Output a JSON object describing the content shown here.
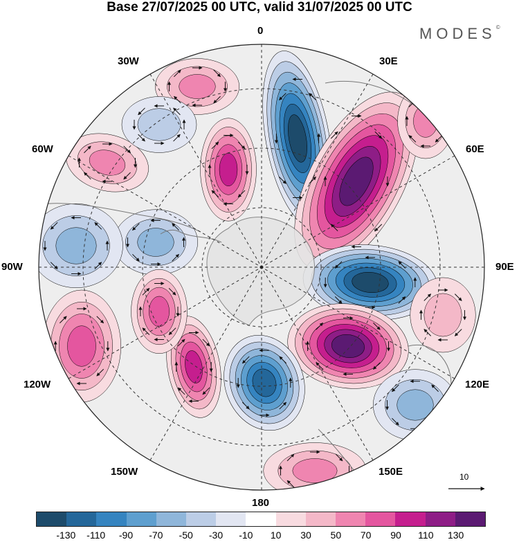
{
  "title": "Base 27/07/2025 00 UTC, valid 31/07/2025 00 UTC",
  "brand": "MODES",
  "brand_mark": "©",
  "longitude_labels": {
    "lon_0": "0",
    "lon_30e": "30E",
    "lon_60e": "60E",
    "lon_90e": "90E",
    "lon_120e": "120E",
    "lon_150e": "150E",
    "lon_180": "180",
    "lon_150w": "150W",
    "lon_120w": "120W",
    "lon_90w": "90W",
    "lon_60w": "60W",
    "lon_30w": "30W"
  },
  "vector_scale": {
    "label": "10"
  },
  "legend": {
    "colors": [
      "#1d4b6b",
      "#24679a",
      "#3584c0",
      "#5e9fcf",
      "#8fb6da",
      "#bccde6",
      "#e2e6f2",
      "#ffffff",
      "#f8dbe0",
      "#f4b8c8",
      "#ef85b0",
      "#e4569f",
      "#c51e8e",
      "#8e1d86",
      "#5b1a72"
    ],
    "labels": [
      "-130",
      "-110",
      "-90",
      "-70",
      "-50",
      "-30",
      "-10",
      "10",
      "30",
      "50",
      "70",
      "90",
      "110",
      "130"
    ]
  },
  "anomaly_centers": [
    {
      "sign": "neg",
      "value": -130
    },
    {
      "sign": "pos",
      "value": 130
    },
    {
      "sign": "neg",
      "value": -130
    },
    {
      "sign": "pos",
      "value": 130
    },
    {
      "sign": "neg",
      "value": -110
    },
    {
      "sign": "pos",
      "value": 90
    },
    {
      "sign": "pos",
      "value": 90
    },
    {
      "sign": "neg",
      "value": -50
    },
    {
      "sign": "pos",
      "value": 50
    },
    {
      "sign": "neg",
      "value": -50
    },
    {
      "sign": "pos",
      "value": 70
    },
    {
      "sign": "pos",
      "value": 50
    },
    {
      "sign": "pos",
      "value": 70
    },
    {
      "sign": "neg",
      "value": -50
    },
    {
      "sign": "pos",
      "value": 50
    },
    {
      "sign": "neg",
      "value": -30
    },
    {
      "sign": "pos",
      "value": 30
    },
    {
      "sign": "pos",
      "value": 50
    }
  ]
}
